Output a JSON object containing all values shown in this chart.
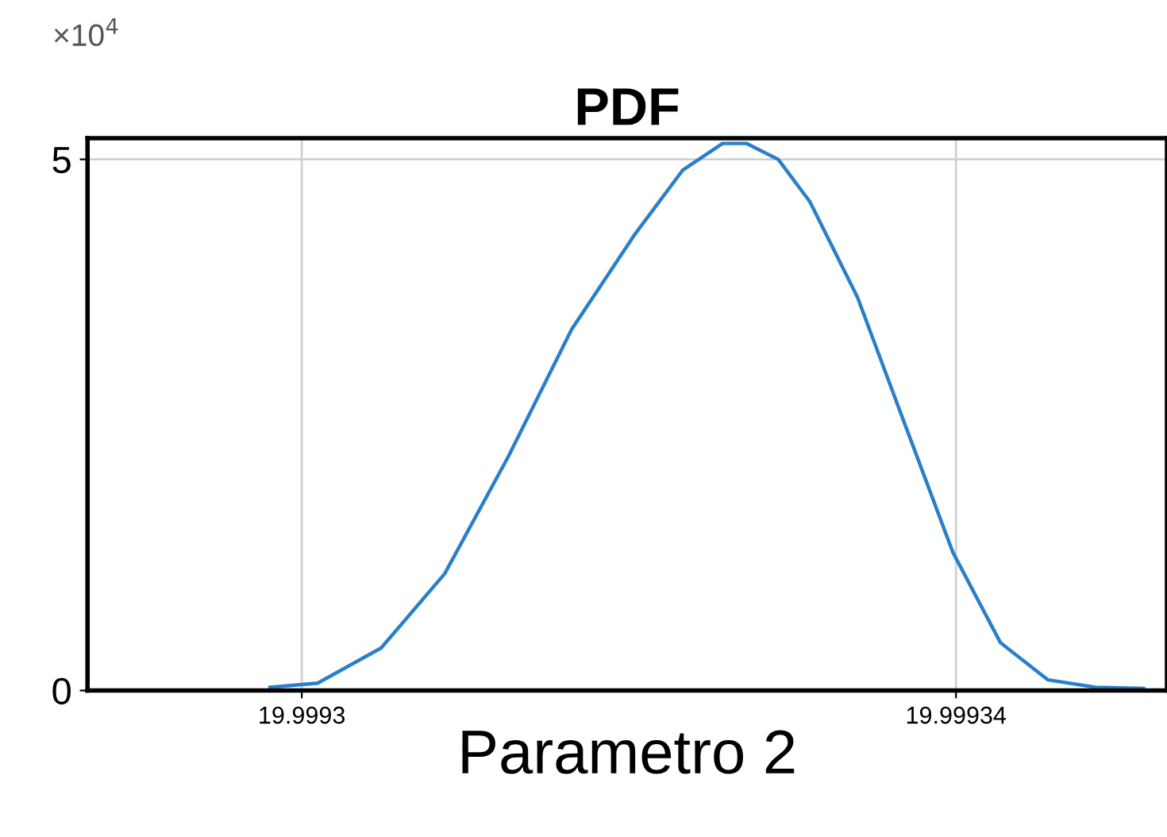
{
  "chart_data": {
    "type": "line",
    "title": "PDF",
    "xlabel": "Parametro 2",
    "annotations": [
      "×10$^{4}$"
    ],
    "x": [
      19.99929806,
      19.99930097,
      19.99930485,
      19.99930874,
      19.99931262,
      19.9993165,
      19.99932039,
      19.9993233,
      19.99932573,
      19.99932718,
      19.99932913,
      19.99933107,
      19.99933398,
      19.99933689,
      19.99933981,
      19.99934272,
      19.99934563,
      19.99934854,
      19.99935146
    ],
    "series": [
      {
        "color": "#2a7fc9",
        "values": [
          0.03,
          0.07,
          0.4,
          1.1,
          2.2,
          3.4,
          4.3,
          4.9,
          5.15,
          5.15,
          5.0,
          4.6,
          3.7,
          2.5,
          1.3,
          0.45,
          0.1,
          0.03,
          0.02
        ]
      }
    ],
    "xlim": [
      19.9992869,
      19.9993529
    ],
    "ylim": [
      0,
      5.2
    ],
    "xticks": [
      {
        "value": 19.9993,
        "label": "19.9993"
      },
      {
        "value": 19.99934,
        "label": "19.99934"
      }
    ],
    "yticks": [
      0,
      5
    ],
    "grid": true,
    "marker": "none",
    "line_style": "solid"
  }
}
